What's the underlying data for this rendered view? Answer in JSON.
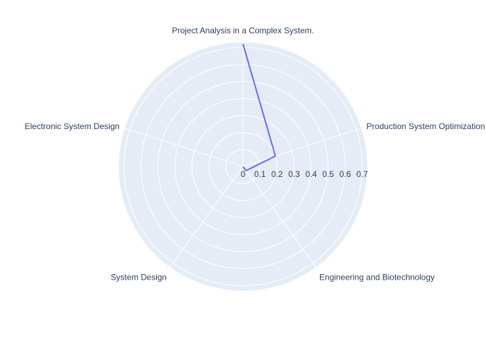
{
  "chart_data": {
    "type": "radar",
    "categories": [
      "Project Analysis in a Complex System.",
      "Production System Optimization in Chemical Engineering.",
      "Engineering and Biotechnology",
      "System Design",
      "Electronic System Design"
    ],
    "series": [
      {
        "values": [
          0.72,
          0.2,
          0.03,
          0.0,
          0.0
        ]
      }
    ],
    "radial_range": [
      0,
      0.73
    ],
    "radial_ticks": [
      0,
      0.1,
      0.2,
      0.3,
      0.4,
      0.5,
      0.6,
      0.7
    ],
    "radial_tick_labels": [
      "0",
      "0.1",
      "0.2",
      "0.3",
      "0.4",
      "0.5",
      "0.6",
      "0.7"
    ],
    "grid": true,
    "colors": {
      "background": "#e5ecf6",
      "grid": "#ffffff",
      "line": "#636efa",
      "text": "#2a3f5f"
    }
  }
}
